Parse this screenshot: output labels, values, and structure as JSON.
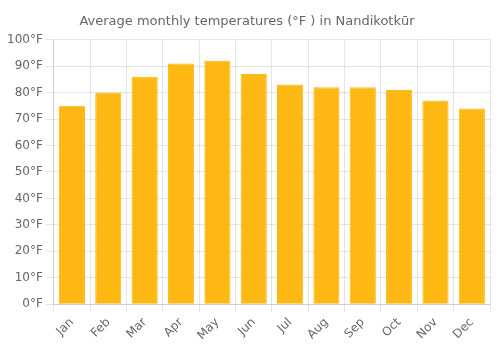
{
  "chart_data": {
    "type": "bar",
    "title": "Average monthly temperatures (°F ) in Nandikotkūr",
    "categories": [
      "Jan",
      "Feb",
      "Mar",
      "Apr",
      "May",
      "Jun",
      "Jul",
      "Aug",
      "Sep",
      "Oct",
      "Nov",
      "Dec"
    ],
    "values": [
      75,
      80,
      86,
      91,
      92,
      87,
      83,
      82,
      82,
      81,
      77,
      74
    ],
    "color": "#FDB813",
    "ylim": [
      0,
      100
    ],
    "yticks": [
      {
        "value": 0,
        "label": "0°F"
      },
      {
        "value": 10,
        "label": "10°F"
      },
      {
        "value": 20,
        "label": "20°F"
      },
      {
        "value": 30,
        "label": "30°F"
      },
      {
        "value": 40,
        "label": "40°F"
      },
      {
        "value": 50,
        "label": "50°F"
      },
      {
        "value": 60,
        "label": "60°F"
      },
      {
        "value": 70,
        "label": "70°F"
      },
      {
        "value": 80,
        "label": "80°F"
      },
      {
        "value": 90,
        "label": "90°F"
      },
      {
        "value": 100,
        "label": "100°F"
      }
    ],
    "grid": true
  }
}
